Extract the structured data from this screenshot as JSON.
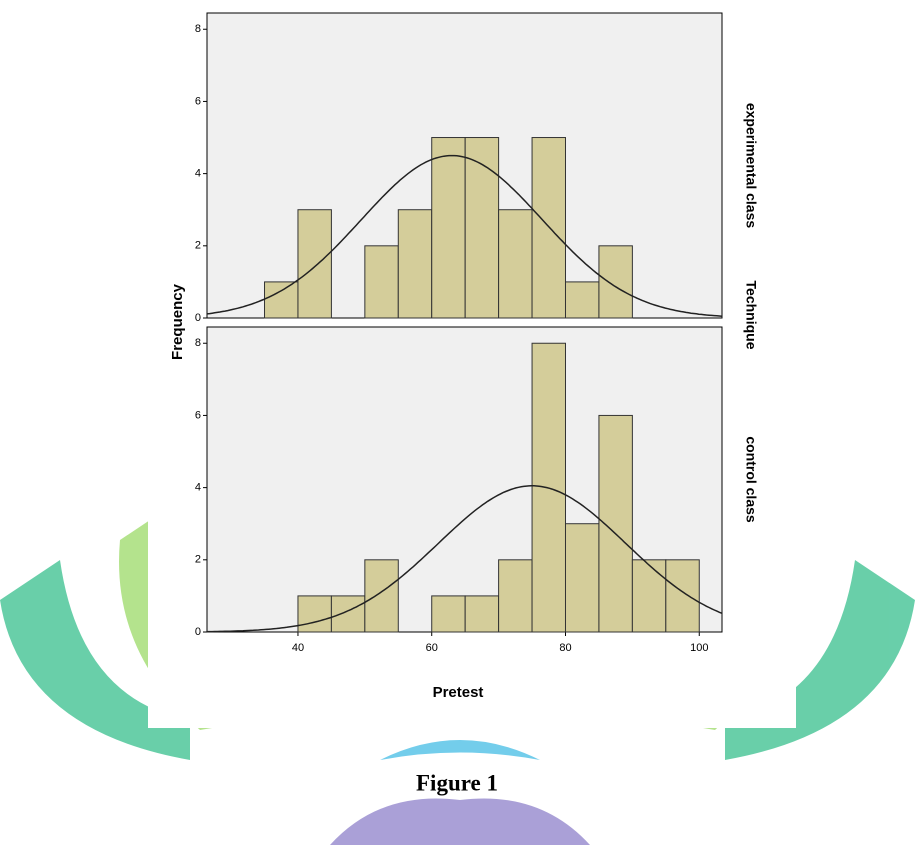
{
  "figure": {
    "caption": "Figure 1"
  },
  "chart_data": [
    {
      "type": "histogram",
      "panel_label": "experimental class",
      "y_label": "Frequency",
      "facet_label": "Technique",
      "bins": [
        35,
        40,
        45,
        50,
        55,
        60,
        65,
        70,
        75,
        80,
        85,
        90
      ],
      "counts": [
        1,
        3,
        0,
        2,
        3,
        5,
        5,
        3,
        5,
        1,
        2
      ],
      "color": "#d4cd9a",
      "xlim": [
        26.4,
        103.4
      ],
      "ylim": [
        0,
        8.45
      ],
      "yticks": [
        0,
        2,
        4,
        6,
        8
      ],
      "curve": {
        "mean": 63,
        "sd": 13.5,
        "peak": 4.5
      }
    },
    {
      "type": "histogram",
      "panel_label": "control class",
      "x_label": "Pretest",
      "bins": [
        40,
        45,
        50,
        55,
        60,
        65,
        70,
        75,
        80,
        85,
        90,
        95,
        100
      ],
      "counts": [
        1,
        1,
        2,
        0,
        1,
        1,
        2,
        8,
        3,
        6,
        2,
        2
      ],
      "color": "#d4cd9a",
      "xlim": [
        26.4,
        103.4
      ],
      "ylim": [
        0,
        8.45
      ],
      "yticks": [
        0,
        2,
        4,
        6,
        8
      ],
      "xticks": [
        40,
        60,
        80,
        100
      ],
      "curve": {
        "mean": 75,
        "sd": 14,
        "peak": 4.05
      }
    }
  ]
}
